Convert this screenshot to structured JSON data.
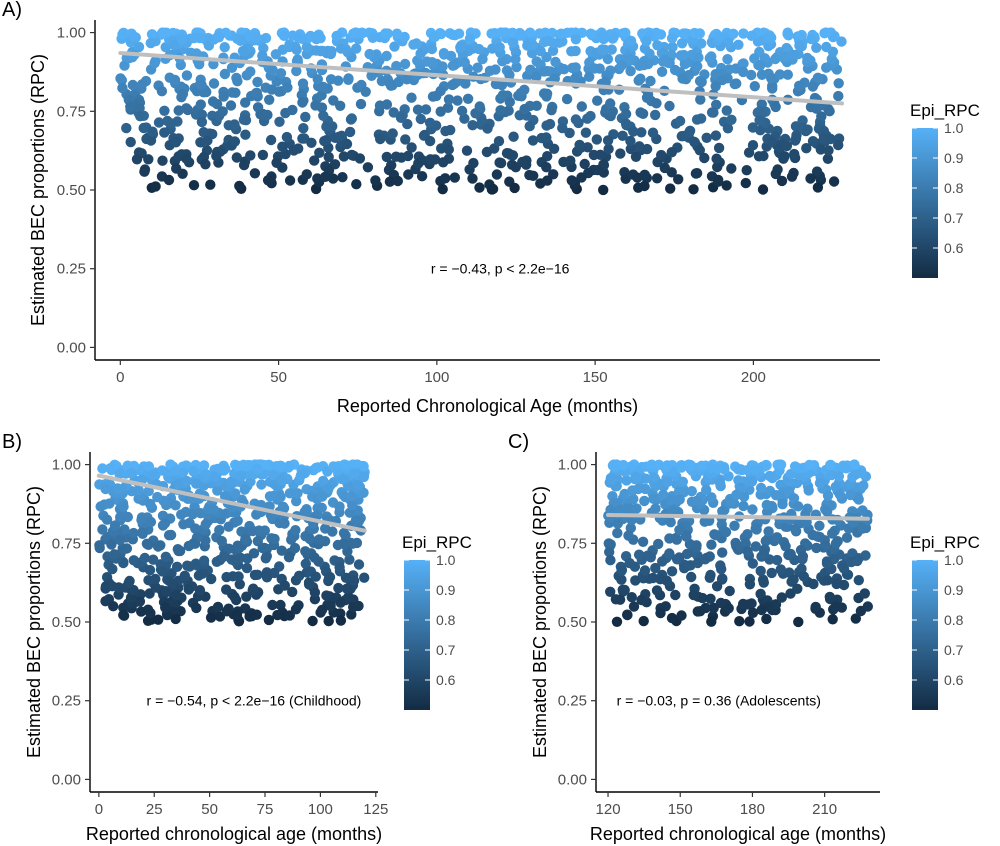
{
  "chart_data": [
    {
      "type": "scatter",
      "panel": "A)",
      "title": "",
      "xlabel": "Reported Chronological Age (months)",
      "ylabel": "Estimated BEC proportions (RPC)",
      "xlim": [
        -8,
        240
      ],
      "ylim": [
        -0.04,
        1.04
      ],
      "x_ticks": [
        0,
        50,
        100,
        150,
        200
      ],
      "x_tick_labels": [
        "0",
        "50",
        "100",
        "150",
        "200"
      ],
      "y_ticks": [
        0,
        0.25,
        0.5,
        0.75,
        1.0
      ],
      "y_tick_labels": [
        "0.00",
        "0.25",
        "0.50",
        "0.75",
        "1.00"
      ],
      "trend": {
        "x": [
          0,
          228
        ],
        "y": [
          0.935,
          0.775
        ],
        "color": "#bfbfbf"
      },
      "point_x_range": [
        0,
        228
      ],
      "point_y_range": [
        0.5,
        1.0
      ],
      "point_count": 1200,
      "annotation": {
        "text": "r = −0.43, p < 2.2e−16",
        "x": 120,
        "y": 0.25
      },
      "legend": {
        "title": "Epi_RPC",
        "min": 0.5,
        "max": 1.0,
        "ticks": [
          "0.6",
          "0.7",
          "0.8",
          "0.9",
          "1.0"
        ],
        "low_color": "#132B43",
        "high_color": "#56B1F7"
      }
    },
    {
      "type": "scatter",
      "panel": "B)",
      "title": "",
      "xlabel": "Reported chronological age (months)",
      "ylabel": "Estimated BEC proportions (RPC)",
      "xlim": [
        -4,
        126
      ],
      "ylim": [
        -0.04,
        1.04
      ],
      "x_ticks": [
        0,
        25,
        50,
        75,
        100,
        125
      ],
      "x_tick_labels": [
        "0",
        "25",
        "50",
        "75",
        "100",
        "125"
      ],
      "y_ticks": [
        0,
        0.25,
        0.5,
        0.75,
        1.0
      ],
      "y_tick_labels": [
        "0.00",
        "0.25",
        "0.50",
        "0.75",
        "1.00"
      ],
      "trend": {
        "x": [
          0,
          120
        ],
        "y": [
          0.965,
          0.79
        ],
        "color": "#bfbfbf"
      },
      "point_x_range": [
        0,
        120
      ],
      "point_y_range": [
        0.5,
        1.0
      ],
      "point_count": 700,
      "annotation": {
        "text": "r = −0.54, p < 2.2e−16 (Childhood)",
        "x": 70,
        "y": 0.25
      },
      "legend": {
        "title": "Epi_RPC",
        "min": 0.5,
        "max": 1.0,
        "ticks": [
          "0.6",
          "0.7",
          "0.8",
          "0.9",
          "1.0"
        ],
        "low_color": "#132B43",
        "high_color": "#56B1F7"
      }
    },
    {
      "type": "scatter",
      "panel": "C)",
      "title": "",
      "xlabel": "Reported chronological age (months)",
      "ylabel": "Estimated BEC proportions (RPC)",
      "xlim": [
        115,
        233
      ],
      "ylim": [
        -0.04,
        1.04
      ],
      "x_ticks": [
        120,
        150,
        180,
        210
      ],
      "x_tick_labels": [
        "120",
        "150",
        "180",
        "210"
      ],
      "y_ticks": [
        0,
        0.25,
        0.5,
        0.75,
        1.0
      ],
      "y_tick_labels": [
        "0.00",
        "0.25",
        "0.50",
        "0.75",
        "1.00"
      ],
      "trend": {
        "x": [
          120,
          228
        ],
        "y": [
          0.84,
          0.828
        ],
        "color": "#bfbfbf"
      },
      "point_x_range": [
        120,
        228
      ],
      "point_y_range": [
        0.5,
        1.0
      ],
      "point_count": 600,
      "annotation": {
        "text": "r = −0.03, p = 0.36 (Adolescents)",
        "x": 166,
        "y": 0.25
      },
      "legend": {
        "title": "Epi_RPC",
        "min": 0.5,
        "max": 1.0,
        "ticks": [
          "0.6",
          "0.7",
          "0.8",
          "0.9",
          "1.0"
        ],
        "low_color": "#132B43",
        "high_color": "#56B1F7"
      }
    }
  ]
}
